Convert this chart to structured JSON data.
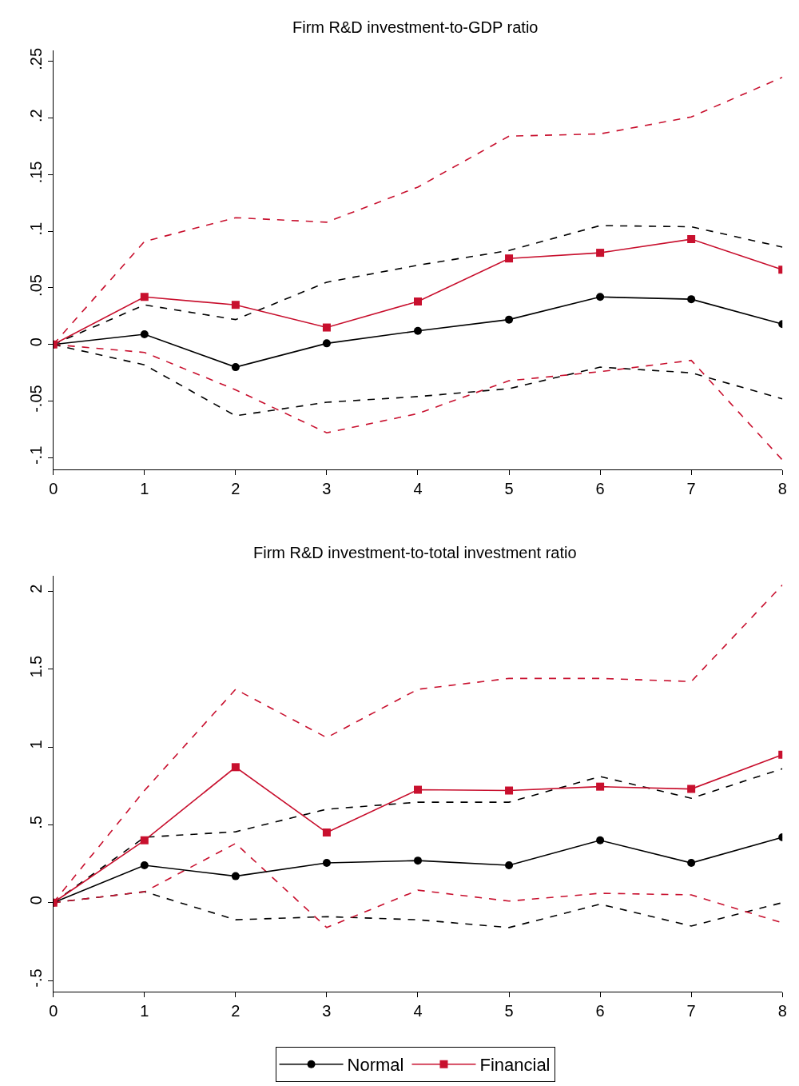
{
  "chart_data": [
    {
      "type": "line",
      "title": "Firm R&D investment-to-GDP ratio",
      "x": [
        0,
        1,
        2,
        3,
        4,
        5,
        6,
        7,
        8
      ],
      "xlim": [
        0,
        8
      ],
      "xticks": [
        0,
        1,
        2,
        3,
        4,
        5,
        6,
        7,
        8
      ],
      "ylim": [
        -0.11,
        0.26
      ],
      "yticks": [
        {
          "value": -0.1,
          "label": "-.1"
        },
        {
          "value": -0.05,
          "label": "-.05"
        },
        0,
        {
          "value": 0.05,
          "label": ".05"
        },
        {
          "value": 0.1,
          "label": ".1"
        },
        {
          "value": 0.15,
          "label": ".15"
        },
        {
          "value": 0.2,
          "label": ".2"
        },
        {
          "value": 0.25,
          "label": ".25"
        }
      ],
      "series": [
        {
          "color": "#000000",
          "line_style": "dashed",
          "marker": "none",
          "values": [
            0,
            0.035,
            0.022,
            0.055,
            0.07,
            0.083,
            0.105,
            0.104,
            0.086
          ]
        },
        {
          "color": "#000000",
          "line_style": "dashed",
          "marker": "none",
          "values": [
            0,
            -0.018,
            -0.063,
            -0.051,
            -0.046,
            -0.039,
            -0.02,
            -0.025,
            -0.048
          ]
        },
        {
          "color": "#c8102e",
          "line_style": "dashed",
          "marker": "none",
          "values": [
            0,
            0.091,
            0.112,
            0.108,
            0.139,
            0.184,
            0.186,
            0.201,
            0.236
          ]
        },
        {
          "color": "#c8102e",
          "line_style": "dashed",
          "marker": "none",
          "values": [
            0,
            -0.007,
            -0.04,
            -0.078,
            -0.061,
            -0.032,
            -0.024,
            -0.014,
            -0.102
          ]
        },
        {
          "color": "#000000",
          "line_style": "solid",
          "marker": "circle",
          "values": [
            0,
            0.009,
            -0.02,
            0.001,
            0.012,
            0.022,
            0.042,
            0.04,
            0.018
          ]
        },
        {
          "color": "#c8102e",
          "line_style": "solid",
          "marker": "square",
          "values": [
            0,
            0.042,
            0.035,
            0.015,
            0.038,
            0.076,
            0.081,
            0.093,
            0.066
          ]
        }
      ]
    },
    {
      "type": "line",
      "title": "Firm R&D investment-to-total investment ratio",
      "x": [
        0,
        1,
        2,
        3,
        4,
        5,
        6,
        7,
        8
      ],
      "xlim": [
        0,
        8
      ],
      "xticks": [
        0,
        1,
        2,
        3,
        4,
        5,
        6,
        7,
        8
      ],
      "ylim": [
        -0.57,
        2.1
      ],
      "yticks": [
        {
          "value": -0.5,
          "label": "-.5"
        },
        0,
        {
          "value": 0.5,
          "label": ".5"
        },
        1,
        1.5,
        2
      ],
      "legend": "bottom",
      "series": [
        {
          "color": "#000000",
          "line_style": "dashed",
          "marker": "none",
          "values": [
            0,
            0.42,
            0.455,
            0.6,
            0.645,
            0.645,
            0.81,
            0.67,
            0.86
          ]
        },
        {
          "color": "#000000",
          "line_style": "dashed",
          "marker": "none",
          "values": [
            0,
            0.07,
            -0.11,
            -0.09,
            -0.11,
            -0.16,
            -0.01,
            -0.15,
            0.0
          ]
        },
        {
          "color": "#c8102e",
          "line_style": "dashed",
          "marker": "none",
          "values": [
            0,
            0.72,
            1.37,
            1.06,
            1.37,
            1.44,
            1.44,
            1.42,
            2.04
          ]
        },
        {
          "color": "#c8102e",
          "line_style": "dashed",
          "marker": "none",
          "values": [
            0,
            0.07,
            0.38,
            -0.16,
            0.08,
            0.01,
            0.06,
            0.05,
            -0.13
          ]
        },
        {
          "name": "Normal",
          "color": "#000000",
          "line_style": "solid",
          "marker": "circle",
          "values": [
            0,
            0.24,
            0.17,
            0.255,
            0.27,
            0.24,
            0.4,
            0.255,
            0.42
          ]
        },
        {
          "name": "Financial",
          "color": "#c8102e",
          "line_style": "solid",
          "marker": "square",
          "values": [
            0,
            0.4,
            0.87,
            0.45,
            0.725,
            0.72,
            0.745,
            0.73,
            0.95
          ]
        }
      ]
    }
  ]
}
